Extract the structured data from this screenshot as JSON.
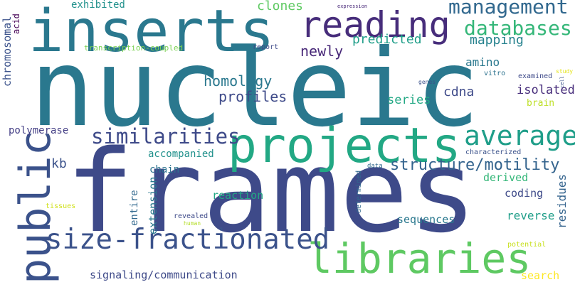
{
  "words": [
    {
      "text": "nucleic",
      "color": "#2a788e"
    },
    {
      "text": "frames",
      "color": "#3e4a89"
    },
    {
      "text": "inserts",
      "color": "#2a788e"
    },
    {
      "text": "projects",
      "color": "#22a884"
    },
    {
      "text": "public",
      "color": "#3b528b"
    },
    {
      "text": "libraries",
      "color": "#5ec962"
    },
    {
      "text": "reading",
      "color": "#472d7b"
    },
    {
      "text": "size-fractionated",
      "color": "#3b528b"
    },
    {
      "text": "average",
      "color": "#1f9e89"
    },
    {
      "text": "management",
      "color": "#31688e"
    },
    {
      "text": "databases",
      "color": "#35b779"
    },
    {
      "text": "similarities",
      "color": "#3e4a89"
    },
    {
      "text": "structure/motility",
      "color": "#33638d"
    },
    {
      "text": "homology",
      "color": "#2a788e"
    },
    {
      "text": "profiles",
      "color": "#3e4a89"
    },
    {
      "text": "newly",
      "color": "#482878"
    },
    {
      "text": "predicted",
      "color": "#1f9e89"
    },
    {
      "text": "mapping",
      "color": "#26828e"
    },
    {
      "text": "clones",
      "color": "#5ec962"
    },
    {
      "text": "exhibited",
      "color": "#21918c"
    },
    {
      "text": "chromosomal",
      "color": "#3b528b"
    },
    {
      "text": "acid",
      "color": "#440154"
    },
    {
      "text": "transcription-coupled",
      "color": "#7ad151"
    },
    {
      "text": "amino",
      "color": "#2a788e"
    },
    {
      "text": "cdna",
      "color": "#3e4a89"
    },
    {
      "text": "isolated",
      "color": "#472d7b"
    },
    {
      "text": "series",
      "color": "#22a884"
    },
    {
      "text": "brain",
      "color": "#bddf26"
    },
    {
      "text": "polymerase",
      "color": "#433e85"
    },
    {
      "text": "accompanied",
      "color": "#21918c"
    },
    {
      "text": "kb",
      "color": "#3b528b"
    },
    {
      "text": "chain",
      "color": "#2c728e"
    },
    {
      "text": "entire",
      "color": "#31688e"
    },
    {
      "text": "extension",
      "color": "#2a788e"
    },
    {
      "text": "reaction",
      "color": "#22a884"
    },
    {
      "text": "derived",
      "color": "#35b779"
    },
    {
      "text": "coding",
      "color": "#3e4a89"
    },
    {
      "text": "reverse",
      "color": "#1f9e89"
    },
    {
      "text": "residues",
      "color": "#33638d"
    },
    {
      "text": "sequences",
      "color": "#2a788e"
    },
    {
      "text": "signaling/communication",
      "color": "#3e4a89"
    },
    {
      "text": "search",
      "color": "#fde725"
    },
    {
      "text": "characterized",
      "color": "#3b528b"
    },
    {
      "text": "determined",
      "color": "#31688e"
    },
    {
      "text": "revealed",
      "color": "#3e4a89"
    },
    {
      "text": "human",
      "color": "#b5de2b"
    },
    {
      "text": "tissues",
      "color": "#d0e11c"
    },
    {
      "text": "potential",
      "color": "#c8e020"
    },
    {
      "text": "data",
      "color": "#31688e"
    },
    {
      "text": "report",
      "color": "#3e4a89"
    },
    {
      "text": "expression",
      "color": "#482878"
    },
    {
      "text": "vitro",
      "color": "#2c728e"
    },
    {
      "text": "examined",
      "color": "#3e4a89"
    },
    {
      "text": "genes",
      "color": "#3b528b"
    },
    {
      "text": "study",
      "color": "#e5e419"
    },
    {
      "text": "cell",
      "color": "#3b528b"
    }
  ]
}
